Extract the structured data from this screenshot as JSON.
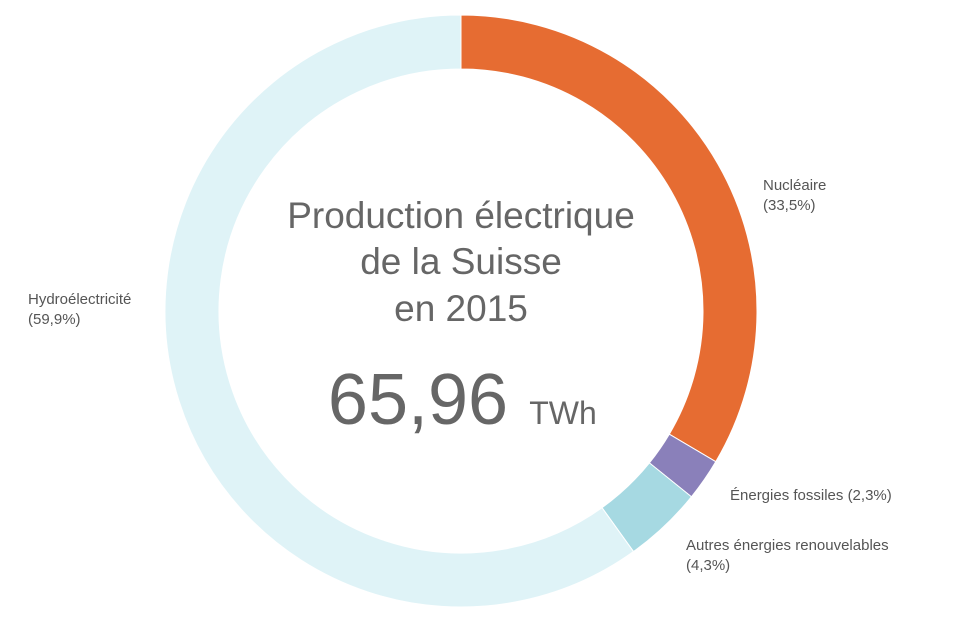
{
  "chart_data": {
    "type": "pie",
    "title_lines": [
      "Production électrique",
      "de la Suisse",
      "en 2015"
    ],
    "total_value": "65,96",
    "total_unit": "TWh",
    "slices": [
      {
        "name": "Nucléaire",
        "percent_label": "(33,5%)",
        "value": 33.5,
        "color": "#E66C32"
      },
      {
        "name": "Énergies fossiles",
        "percent_label": "(2,3%)",
        "value": 2.3,
        "color": "#8A80BA"
      },
      {
        "name": "Autres énergies renouvelables",
        "percent_label": "(4,3%)",
        "value": 4.3,
        "color": "#A6D9E2"
      },
      {
        "name": "Hydroélectricité",
        "percent_label": "(59,9%)",
        "value": 59.9,
        "color": "#DFF3F7"
      }
    ]
  }
}
